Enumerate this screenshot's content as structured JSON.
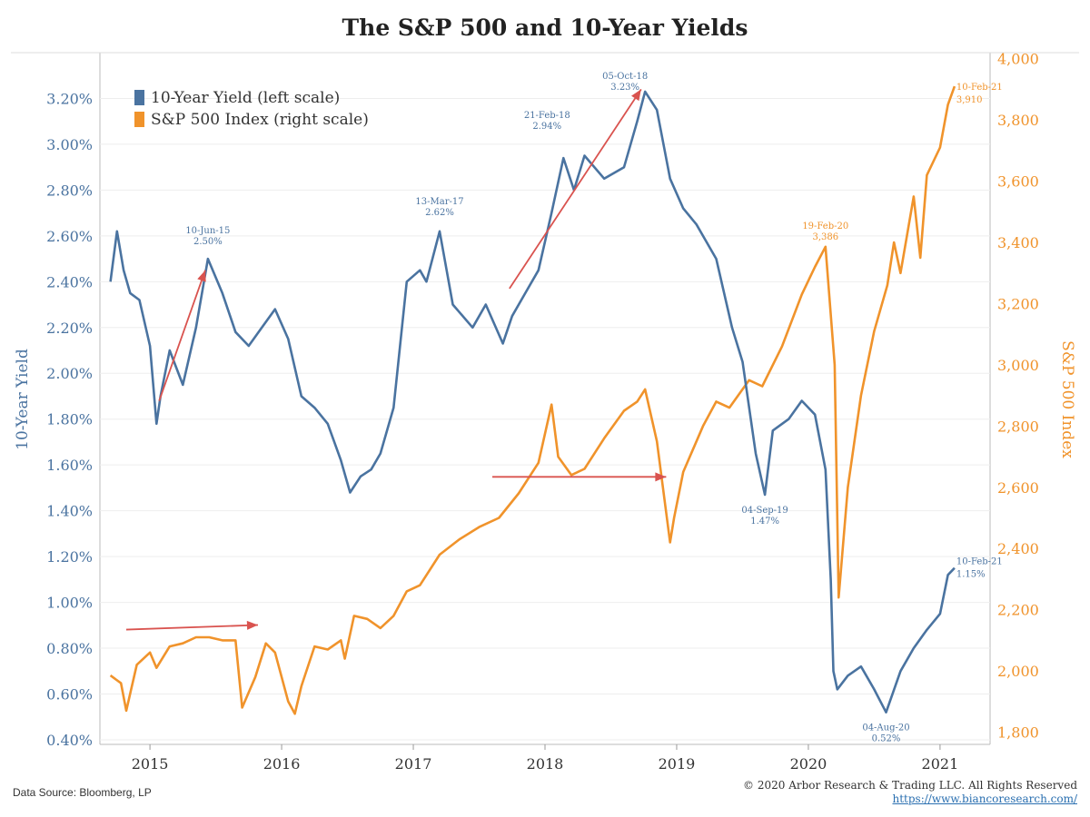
{
  "chart_data": {
    "type": "line",
    "title": "The S&P 500 and 10-Year Yields",
    "x_tick_labels": [
      "2015",
      "2016",
      "2017",
      "2018",
      "2019",
      "2020",
      "2021"
    ],
    "x_range": [
      2014.62,
      2021.38
    ],
    "left_axis": {
      "label": "10-Year Yield",
      "range": [
        0.38,
        3.4
      ],
      "ticks": [
        0.4,
        0.6,
        0.8,
        1.0,
        1.2,
        1.4,
        1.6,
        1.8,
        2.0,
        2.2,
        2.4,
        2.6,
        2.8,
        3.0,
        3.2
      ],
      "tick_labels": [
        "0.40%",
        "0.60%",
        "0.80%",
        "1.00%",
        "1.20%",
        "1.40%",
        "1.60%",
        "1.80%",
        "2.00%",
        "2.20%",
        "2.40%",
        "2.60%",
        "2.80%",
        "3.00%",
        "3.20%"
      ],
      "color": "#4a73a0"
    },
    "right_axis": {
      "label": "S&P 500 Index",
      "range": [
        1760,
        4020
      ],
      "ticks": [
        1800,
        2000,
        2200,
        2400,
        2600,
        2800,
        3000,
        3200,
        3400,
        3600,
        3800,
        4000
      ],
      "tick_labels": [
        "1,800",
        "2,000",
        "2,200",
        "2,400",
        "2,600",
        "2,800",
        "3,000",
        "3,200",
        "3,400",
        "3,600",
        "3,800",
        "4,000"
      ],
      "color": "#f0932b"
    },
    "legend": {
      "placement": "top-left",
      "items": [
        "10-Year Yield (left scale)",
        "S&P 500 Index (right scale)"
      ]
    },
    "series": [
      {
        "name": "10-Year Yield (left scale)",
        "axis": "left",
        "color": "#4a73a0",
        "x": [
          2014.7,
          2014.75,
          2014.8,
          2014.85,
          2014.92,
          2015.0,
          2015.05,
          2015.08,
          2015.15,
          2015.25,
          2015.35,
          2015.44,
          2015.55,
          2015.65,
          2015.75,
          2015.85,
          2015.95,
          2016.05,
          2016.15,
          2016.25,
          2016.35,
          2016.45,
          2016.52,
          2016.6,
          2016.68,
          2016.75,
          2016.85,
          2016.95,
          2017.05,
          2017.1,
          2017.2,
          2017.3,
          2017.45,
          2017.55,
          2017.68,
          2017.75,
          2017.85,
          2017.95,
          2018.05,
          2018.14,
          2018.22,
          2018.3,
          2018.45,
          2018.6,
          2018.7,
          2018.76,
          2018.85,
          2018.95,
          2019.05,
          2019.15,
          2019.3,
          2019.42,
          2019.5,
          2019.6,
          2019.67,
          2019.73,
          2019.85,
          2019.95,
          2020.05,
          2020.13,
          2020.17,
          2020.19,
          2020.22,
          2020.3,
          2020.4,
          2020.5,
          2020.59,
          2020.7,
          2020.8,
          2020.9,
          2021.0,
          2021.06,
          2021.11
        ],
        "values": [
          2.4,
          2.62,
          2.45,
          2.35,
          2.32,
          2.12,
          1.78,
          1.9,
          2.1,
          1.95,
          2.2,
          2.5,
          2.35,
          2.18,
          2.12,
          2.2,
          2.28,
          2.15,
          1.9,
          1.85,
          1.78,
          1.62,
          1.48,
          1.55,
          1.58,
          1.65,
          1.85,
          2.4,
          2.45,
          2.4,
          2.62,
          2.3,
          2.2,
          2.3,
          2.13,
          2.25,
          2.35,
          2.45,
          2.7,
          2.94,
          2.8,
          2.95,
          2.85,
          2.9,
          3.1,
          3.23,
          3.15,
          2.85,
          2.72,
          2.65,
          2.5,
          2.2,
          2.05,
          1.65,
          1.47,
          1.75,
          1.8,
          1.88,
          1.82,
          1.58,
          1.1,
          0.7,
          0.62,
          0.68,
          0.72,
          0.62,
          0.52,
          0.7,
          0.8,
          0.88,
          0.95,
          1.12,
          1.15
        ],
        "annotations": [
          {
            "date": "10-Jun-15",
            "value": "2.50%",
            "x": 2015.44,
            "y": 2.5
          },
          {
            "date": "13-Mar-17",
            "value": "2.62%",
            "x": 2017.2,
            "y": 2.62
          },
          {
            "date": "21-Feb-18",
            "value": "2.94%",
            "x": 2018.14,
            "y": 2.94
          },
          {
            "date": "05-Oct-18",
            "value": "3.23%",
            "x": 2018.76,
            "y": 3.23
          },
          {
            "date": "04-Sep-19",
            "value": "1.47%",
            "x": 2019.67,
            "y": 1.47
          },
          {
            "date": "04-Aug-20",
            "value": "0.52%",
            "x": 2020.59,
            "y": 0.52
          },
          {
            "date": "10-Feb-21",
            "value": "1.15%",
            "x": 2021.11,
            "y": 1.15
          }
        ]
      },
      {
        "name": "S&P 500 Index (right scale)",
        "axis": "right",
        "color": "#f0932b",
        "x": [
          2014.7,
          2014.78,
          2014.82,
          2014.9,
          2015.0,
          2015.05,
          2015.15,
          2015.25,
          2015.35,
          2015.45,
          2015.55,
          2015.65,
          2015.7,
          2015.8,
          2015.88,
          2015.95,
          2016.05,
          2016.1,
          2016.15,
          2016.25,
          2016.35,
          2016.45,
          2016.48,
          2016.55,
          2016.65,
          2016.75,
          2016.85,
          2016.95,
          2017.05,
          2017.2,
          2017.35,
          2017.5,
          2017.65,
          2017.8,
          2017.95,
          2018.05,
          2018.1,
          2018.2,
          2018.3,
          2018.45,
          2018.6,
          2018.7,
          2018.76,
          2018.85,
          2018.95,
          2018.98,
          2019.05,
          2019.2,
          2019.3,
          2019.4,
          2019.55,
          2019.65,
          2019.8,
          2019.95,
          2020.05,
          2020.13,
          2020.2,
          2020.23,
          2020.3,
          2020.4,
          2020.5,
          2020.6,
          2020.65,
          2020.7,
          2020.8,
          2020.85,
          2020.9,
          2021.0,
          2021.06,
          2021.11
        ],
        "values": [
          1985,
          1960,
          1870,
          2020,
          2060,
          2010,
          2080,
          2090,
          2110,
          2110,
          2100,
          2100,
          1880,
          1980,
          2090,
          2060,
          1900,
          1860,
          1950,
          2080,
          2070,
          2100,
          2040,
          2180,
          2170,
          2140,
          2180,
          2260,
          2280,
          2380,
          2430,
          2470,
          2500,
          2580,
          2680,
          2870,
          2700,
          2640,
          2660,
          2760,
          2850,
          2880,
          2920,
          2750,
          2420,
          2500,
          2650,
          2800,
          2880,
          2860,
          2950,
          2930,
          3060,
          3230,
          3320,
          3386,
          3000,
          2240,
          2600,
          2900,
          3110,
          3260,
          3400,
          3300,
          3550,
          3350,
          3620,
          3710,
          3850,
          3910
        ],
        "annotations": [
          {
            "date": "19-Feb-20",
            "value": "3,386",
            "x": 2020.13,
            "y": 3386
          },
          {
            "date": "10-Feb-21",
            "value": "3,910",
            "x": 2021.11,
            "y": 3910
          }
        ]
      }
    ],
    "arrows": [
      {
        "color": "#d9534f",
        "axis": "left",
        "from": {
          "x": 2015.07,
          "y": 1.88
        },
        "to": {
          "x": 2015.42,
          "y": 2.45
        }
      },
      {
        "color": "#d9534f",
        "axis": "left",
        "from": {
          "x": 2017.73,
          "y": 2.37
        },
        "to": {
          "x": 2018.73,
          "y": 3.24
        }
      },
      {
        "color": "#d9534f",
        "axis": "right",
        "from": {
          "x": 2014.82,
          "y": 2135
        },
        "to": {
          "x": 2015.82,
          "y": 2150
        }
      },
      {
        "color": "#d9534f",
        "axis": "right",
        "from": {
          "x": 2017.6,
          "y": 2634
        },
        "to": {
          "x": 2018.92,
          "y": 2634
        }
      }
    ],
    "grid": true
  },
  "footer": {
    "source": "Data Source: Bloomberg, LP",
    "copyright": "© 2020 Arbor Research & Trading LLC. All Rights Reserved",
    "url": "https://www.biancoresearch.com/"
  }
}
